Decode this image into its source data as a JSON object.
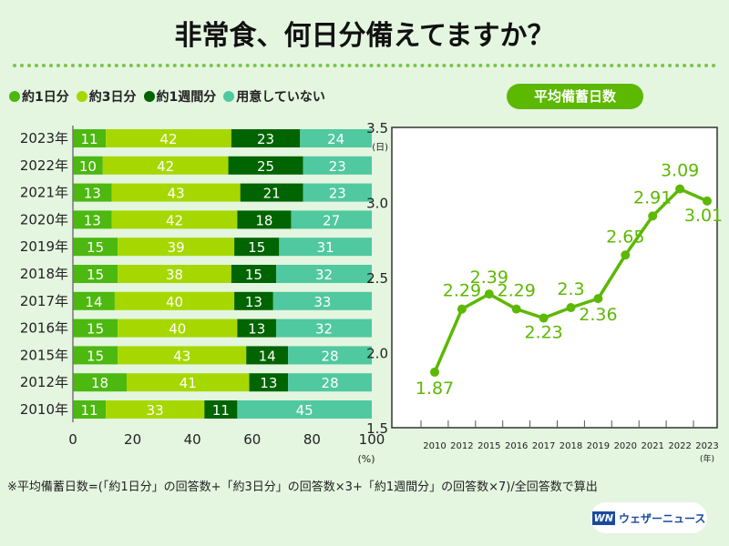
{
  "title": "非常食、何日分備えてますか？",
  "badge": "平均備蓄日数",
  "note": "※平均備蓄日数=(「約1日分」の回答数+「約3日分」の回答数×3+「約1週間分」の回答数×7)/全回答数で算出",
  "logo": {
    "mark": "WN",
    "text": "ウェザーニュース"
  },
  "chart_data": [
    {
      "type": "bar",
      "stacked": true,
      "orientation": "horizontal",
      "xlabel": "(%)",
      "xlim": [
        0,
        100
      ],
      "xticks": [
        0,
        20,
        40,
        60,
        80,
        100
      ],
      "categories": [
        "2023年",
        "2022年",
        "2021年",
        "2020年",
        "2019年",
        "2018年",
        "2017年",
        "2016年",
        "2015年",
        "2012年",
        "2010年"
      ],
      "series": [
        {
          "name": "約1日分",
          "color": "#4cb810",
          "values": [
            11,
            10,
            13,
            13,
            15,
            15,
            14,
            15,
            15,
            18,
            11
          ]
        },
        {
          "name": "約3日分",
          "color": "#a6d800",
          "values": [
            42,
            42,
            43,
            42,
            39,
            38,
            40,
            40,
            43,
            41,
            33
          ]
        },
        {
          "name": "約1週間分",
          "color": "#006400",
          "values": [
            23,
            25,
            21,
            18,
            15,
            15,
            13,
            13,
            14,
            13,
            11
          ]
        },
        {
          "name": "用意していない",
          "color": "#50c8a0",
          "values": [
            24,
            23,
            23,
            27,
            31,
            32,
            33,
            32,
            28,
            28,
            45
          ]
        }
      ]
    },
    {
      "type": "line",
      "title": "平均備蓄日数",
      "ylabel": "(日)",
      "xlabel": "(年)",
      "ylim": [
        1.5,
        3.5
      ],
      "yticks": [
        "1.5",
        "2.0",
        "2.5",
        "3.0",
        "3.5"
      ],
      "x": [
        "2010",
        "2012",
        "2015",
        "2016",
        "2017",
        "2018",
        "2019",
        "2020",
        "2021",
        "2022",
        "2023"
      ],
      "values": [
        1.87,
        2.29,
        2.39,
        2.29,
        2.23,
        2.3,
        2.36,
        2.65,
        2.91,
        3.09,
        3.01
      ],
      "labels": [
        "1.87",
        "2.29",
        "2.39",
        "2.29",
        "2.23",
        "2.3",
        "2.36",
        "2.65",
        "2.91",
        "3.09",
        "3.01"
      ],
      "color": "#5cb800"
    }
  ]
}
